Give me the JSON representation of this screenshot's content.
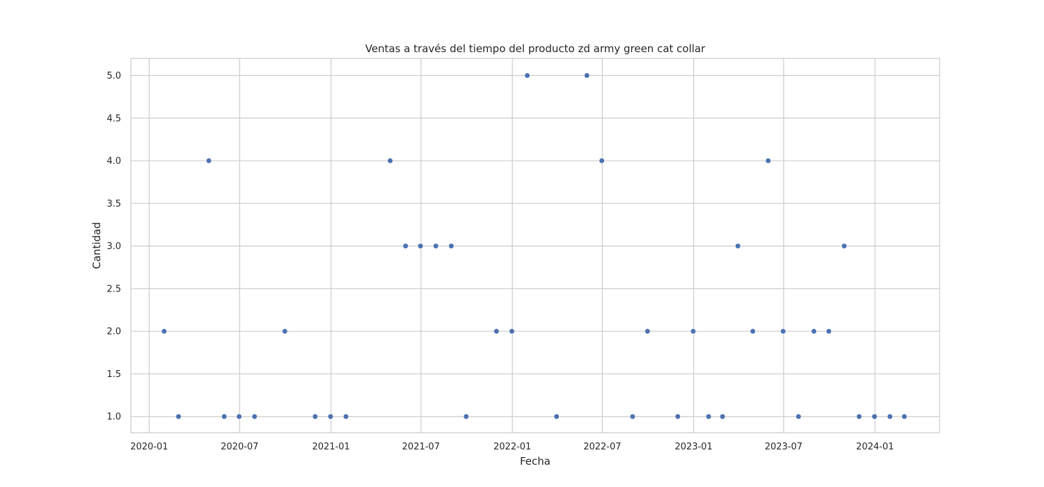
{
  "chart_data": {
    "type": "scatter",
    "title": "Ventas a través del tiempo del producto zd army green cat collar",
    "xlabel": "Fecha",
    "ylabel": "Cantidad",
    "x_axis_type": "date",
    "xlim": [
      "2019-11-25",
      "2024-05-10"
    ],
    "ylim": [
      0.81,
      5.2
    ],
    "x_ticks": [
      "2020-01",
      "2020-07",
      "2021-01",
      "2021-07",
      "2022-01",
      "2022-07",
      "2023-01",
      "2023-07",
      "2024-01"
    ],
    "y_ticks": [
      "1.0",
      "1.5",
      "2.0",
      "2.5",
      "3.0",
      "3.5",
      "4.0",
      "4.5",
      "5.0"
    ],
    "grid": true,
    "point_color": "#4c72b0",
    "points": [
      {
        "x": "2020-01-31",
        "y": 2
      },
      {
        "x": "2020-02-29",
        "y": 1
      },
      {
        "x": "2020-04-30",
        "y": 4
      },
      {
        "x": "2020-05-31",
        "y": 1
      },
      {
        "x": "2020-06-30",
        "y": 1
      },
      {
        "x": "2020-07-31",
        "y": 1
      },
      {
        "x": "2020-09-30",
        "y": 2
      },
      {
        "x": "2020-11-30",
        "y": 1
      },
      {
        "x": "2020-12-31",
        "y": 1
      },
      {
        "x": "2021-01-31",
        "y": 1
      },
      {
        "x": "2021-04-30",
        "y": 4
      },
      {
        "x": "2021-05-31",
        "y": 3
      },
      {
        "x": "2021-06-30",
        "y": 3
      },
      {
        "x": "2021-07-31",
        "y": 3
      },
      {
        "x": "2021-08-31",
        "y": 3
      },
      {
        "x": "2021-09-30",
        "y": 1
      },
      {
        "x": "2021-11-30",
        "y": 2
      },
      {
        "x": "2021-12-31",
        "y": 2
      },
      {
        "x": "2022-01-31",
        "y": 5
      },
      {
        "x": "2022-03-31",
        "y": 1
      },
      {
        "x": "2022-05-31",
        "y": 5
      },
      {
        "x": "2022-06-30",
        "y": 4
      },
      {
        "x": "2022-08-31",
        "y": 1
      },
      {
        "x": "2022-09-30",
        "y": 2
      },
      {
        "x": "2022-11-30",
        "y": 1
      },
      {
        "x": "2022-12-31",
        "y": 2
      },
      {
        "x": "2023-01-31",
        "y": 1
      },
      {
        "x": "2023-02-28",
        "y": 1
      },
      {
        "x": "2023-03-31",
        "y": 3
      },
      {
        "x": "2023-04-30",
        "y": 2
      },
      {
        "x": "2023-05-31",
        "y": 4
      },
      {
        "x": "2023-06-30",
        "y": 2
      },
      {
        "x": "2023-07-31",
        "y": 1
      },
      {
        "x": "2023-08-31",
        "y": 2
      },
      {
        "x": "2023-09-30",
        "y": 2
      },
      {
        "x": "2023-10-31",
        "y": 3
      },
      {
        "x": "2023-11-30",
        "y": 1
      },
      {
        "x": "2023-12-31",
        "y": 1
      },
      {
        "x": "2024-01-31",
        "y": 1
      },
      {
        "x": "2024-02-29",
        "y": 1
      }
    ]
  }
}
